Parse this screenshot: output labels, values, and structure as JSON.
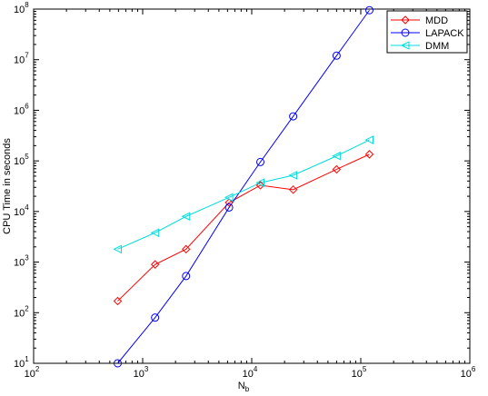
{
  "chart_data": {
    "type": "line",
    "xlabel": {
      "base": "N",
      "sub": "b"
    },
    "ylabel": "CPU Time in seconds",
    "xscale": "log",
    "yscale": "log",
    "xlim": [
      100,
      1000000
    ],
    "ylim": [
      10,
      100000000
    ],
    "grid": false,
    "legend_position": "top-right",
    "x_ticks": [
      {
        "value": 100,
        "base": "10",
        "exp": "2"
      },
      {
        "value": 1000,
        "base": "10",
        "exp": "3"
      },
      {
        "value": 10000,
        "base": "10",
        "exp": "4"
      },
      {
        "value": 100000,
        "base": "10",
        "exp": "5"
      },
      {
        "value": 1000000,
        "base": "10",
        "exp": "6"
      }
    ],
    "y_ticks": [
      {
        "value": 10,
        "base": "10",
        "exp": "1"
      },
      {
        "value": 100,
        "base": "10",
        "exp": "2"
      },
      {
        "value": 1000,
        "base": "10",
        "exp": "3"
      },
      {
        "value": 10000,
        "base": "10",
        "exp": "4"
      },
      {
        "value": 100000,
        "base": "10",
        "exp": "5"
      },
      {
        "value": 1000000,
        "base": "10",
        "exp": "6"
      },
      {
        "value": 10000000,
        "base": "10",
        "exp": "7"
      },
      {
        "value": 100000000,
        "base": "10",
        "exp": "8"
      }
    ],
    "series": [
      {
        "name": "MDD",
        "color": "#ff0000",
        "marker": "diamond",
        "x": [
          590,
          1300,
          2500,
          6200,
          12000,
          24000,
          60000,
          120000
        ],
        "y": [
          170,
          900,
          1800,
          15000,
          33000,
          27000,
          68000,
          135000
        ]
      },
      {
        "name": "LAPACK",
        "color": "#0000ff",
        "marker": "circle",
        "x": [
          590,
          1300,
          2500,
          6200,
          12000,
          24000,
          60000,
          120000
        ],
        "y": [
          10,
          80,
          530,
          12000,
          95000,
          760000,
          12000000,
          95000000
        ]
      },
      {
        "name": "DMM",
        "color": "#00dddd",
        "marker": "triangle-left",
        "x": [
          590,
          1300,
          2500,
          6200,
          12000,
          24000,
          60000,
          120000
        ],
        "y": [
          1800,
          3800,
          8000,
          19000,
          37000,
          52000,
          125000,
          260000
        ]
      }
    ]
  }
}
